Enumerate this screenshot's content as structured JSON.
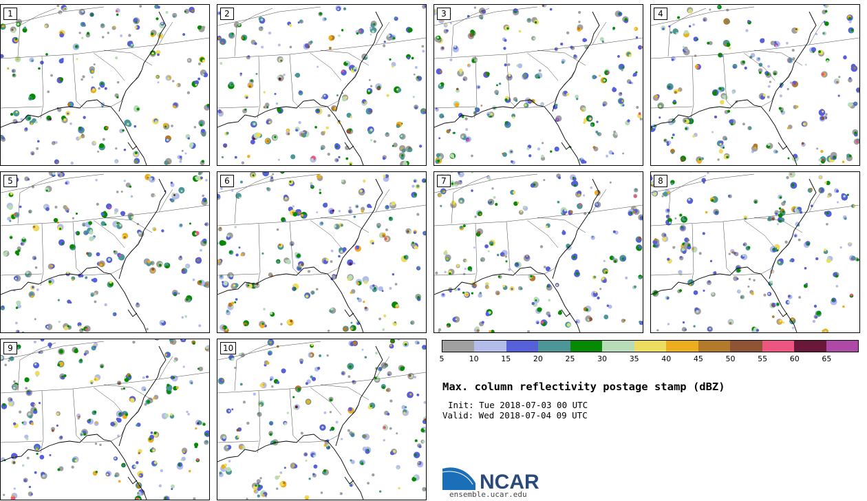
{
  "panels": [
    {
      "label": "1"
    },
    {
      "label": "2"
    },
    {
      "label": "3"
    },
    {
      "label": "4"
    },
    {
      "label": "5"
    },
    {
      "label": "6"
    },
    {
      "label": "7"
    },
    {
      "label": "8"
    },
    {
      "label": "9"
    },
    {
      "label": "10"
    }
  ],
  "colorbar": {
    "colors": [
      "#a0a0a0",
      "#b4bcec",
      "#5660d8",
      "#4c9698",
      "#068a04",
      "#b8dcb8",
      "#ecdc60",
      "#ecae1e",
      "#b47a2c",
      "#8e5434",
      "#ec5680",
      "#6a183a",
      "#ae4aa6"
    ],
    "ticks": [
      "5",
      "10",
      "15",
      "20",
      "25",
      "30",
      "35",
      "40",
      "45",
      "50",
      "55",
      "60",
      "65"
    ]
  },
  "title": "Max. column reflectivity postage stamp (dBZ)",
  "init": "Init: Tue 2018-07-03 00 UTC",
  "valid": "Valid: Wed 2018-07-04 09 UTC",
  "logo": {
    "text": "NCAR",
    "url": "ensemble.ucar.edu"
  }
}
